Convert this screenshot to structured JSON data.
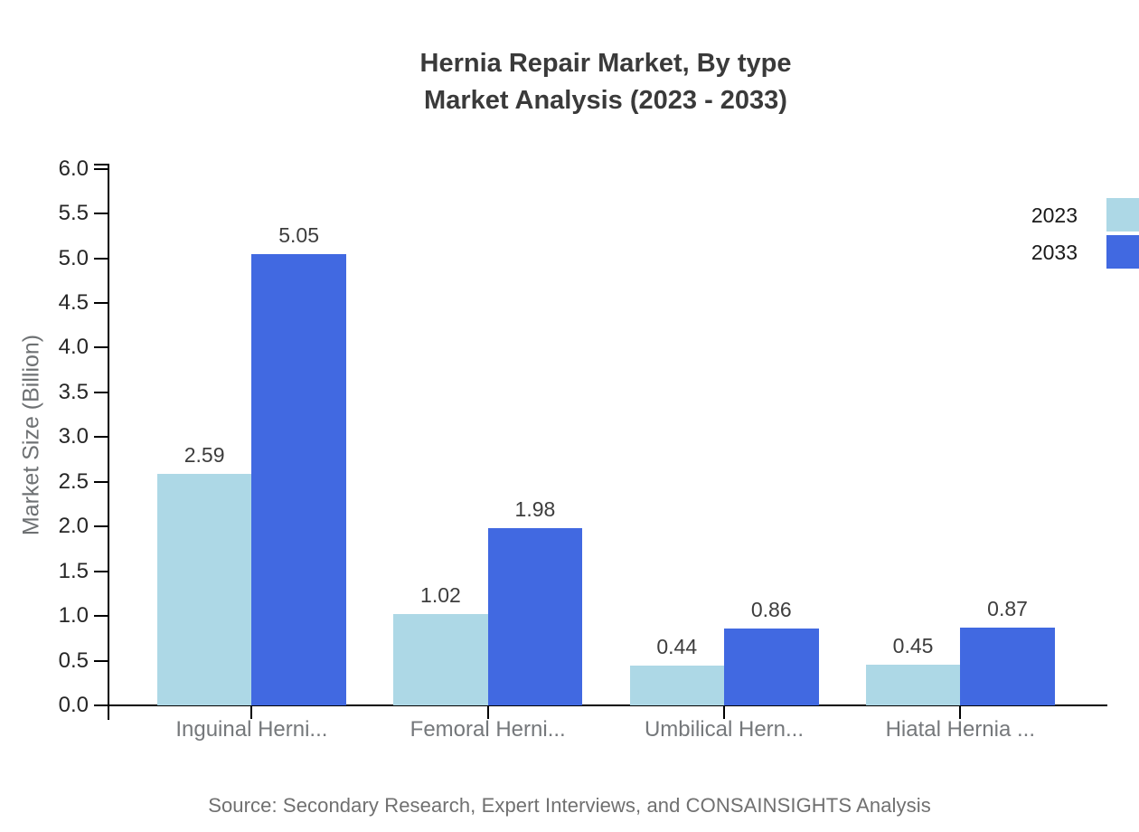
{
  "title": {
    "line1": "Hernia Repair Market, By type",
    "line2": "Market Analysis (2023 - 2033)"
  },
  "chart_data": {
    "type": "bar",
    "title": "Hernia Repair Market, By type Market Analysis (2023 - 2033)",
    "categories": [
      "Inguinal Herni...",
      "Femoral Herni...",
      "Umbilical Hern...",
      "Hiatal Hernia ..."
    ],
    "series": [
      {
        "name": "2023",
        "color": "#add8e6",
        "values": [
          2.59,
          1.02,
          0.44,
          0.45
        ]
      },
      {
        "name": "2033",
        "color": "#4169e1",
        "values": [
          5.05,
          1.98,
          0.86,
          0.87
        ]
      }
    ],
    "xlabel": "",
    "ylabel": "Market Size (Billion)",
    "ylim": [
      0.0,
      6.0
    ],
    "ytick_step": 0.5,
    "yticks": [
      "0.0",
      "0.5",
      "1.0",
      "1.5",
      "2.0",
      "2.5",
      "3.0",
      "3.5",
      "4.0",
      "4.5",
      "5.0",
      "5.5",
      "6.0"
    ],
    "grid": false,
    "legend_position": "top-right",
    "value_labels": true
  },
  "footer": {
    "source": "Source: Secondary Research, Expert Interviews, and CONSAINSIGHTS Analysis"
  },
  "colors": {
    "background": "#ffffff",
    "axis": "#000000",
    "tick_label": "#262626",
    "value_label": "#3d3d3d",
    "category_label": "#75787b",
    "title_text": "#3a3a3a",
    "muted_text": "#707070",
    "series_2023": "#add8e6",
    "series_2033": "#4169e1"
  }
}
